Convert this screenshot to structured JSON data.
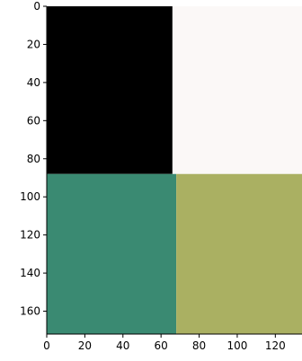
{
  "chart_data": {
    "type": "heatmap",
    "title": "",
    "xlabel": "",
    "ylabel": "",
    "xlim": [
      0,
      134
    ],
    "ylim": [
      172,
      0
    ],
    "grid": false,
    "legend": "none",
    "x_ticks": [
      0,
      20,
      40,
      60,
      80,
      100,
      120
    ],
    "y_ticks": [
      0,
      20,
      40,
      60,
      80,
      100,
      120,
      140,
      160
    ],
    "regions": [
      {
        "label": "top-left",
        "x": [
          0,
          66
        ],
        "y": [
          0,
          88
        ],
        "color": "#000000"
      },
      {
        "label": "top-right",
        "x": [
          66,
          134
        ],
        "y": [
          0,
          88
        ],
        "color": "#fbf8f7"
      },
      {
        "label": "bottom-left",
        "x": [
          0,
          68
        ],
        "y": [
          88,
          172
        ],
        "color": "#3a8a72"
      },
      {
        "label": "bottom-right",
        "x": [
          68,
          134
        ],
        "y": [
          88,
          172
        ],
        "color": "#aab062"
      }
    ]
  }
}
